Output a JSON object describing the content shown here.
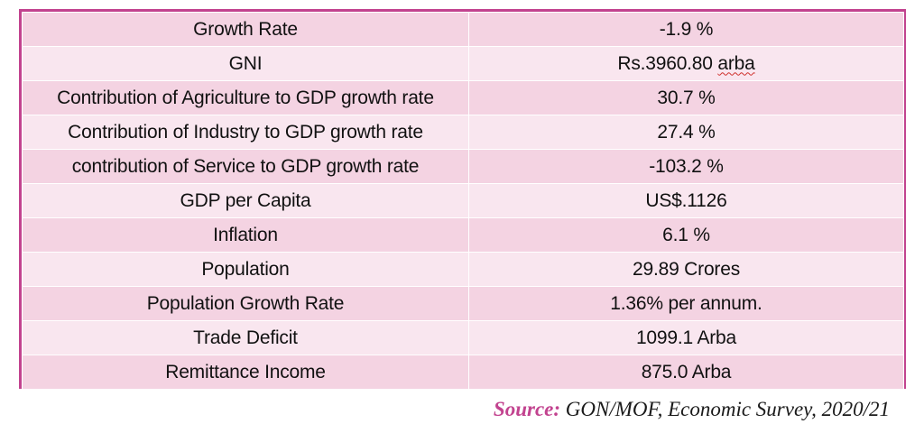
{
  "table": {
    "rows": [
      {
        "label": "Growth Rate",
        "value": "-1.9 %"
      },
      {
        "label": "GNI",
        "value_prefix": "Rs.3960.80 ",
        "value_flagged": "arba"
      },
      {
        "label": "Contribution of Agriculture to GDP growth rate",
        "value": "30.7 %"
      },
      {
        "label": "Contribution of Industry to GDP growth rate",
        "value": "27.4 %"
      },
      {
        "label": "contribution of Service to GDP growth rate",
        "value": "-103.2 %"
      },
      {
        "label": "GDP per Capita",
        "value": "US$.1126"
      },
      {
        "label": "Inflation",
        "value": "6.1 %"
      },
      {
        "label": "Population",
        "value": "29.89 Crores"
      },
      {
        "label": "Population Growth Rate",
        "value": "1.36% per annum."
      },
      {
        "label": "Trade Deficit",
        "value": "1099.1 Arba"
      },
      {
        "label": "Remittance Income",
        "value": "875.0 Arba"
      }
    ]
  },
  "source": {
    "label": "Source:",
    "text": " GON/MOF, Economic Survey, 2020/21"
  },
  "colors": {
    "border": "#c2438f",
    "row_dark": "#f4d3e2",
    "row_light": "#f9e6ef",
    "source_label": "#c2438f",
    "spellcheck": "#d0312d"
  }
}
